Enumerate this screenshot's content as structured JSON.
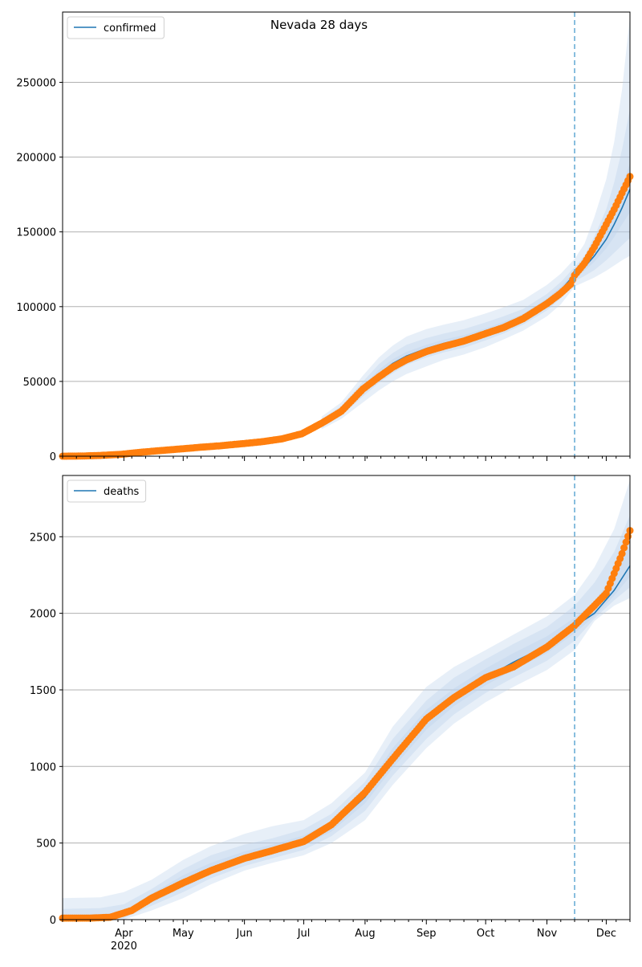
{
  "figure": {
    "title": "Nevada 28 days"
  },
  "colors": {
    "model": "#1f77b4",
    "observed": "#ff7f0e",
    "band": "#b9d2ea",
    "forecast_line": "#6baed6",
    "grid": "#b0b0b0"
  },
  "chart_data": [
    {
      "type": "line",
      "panel": "confirmed",
      "legend": "confirmed",
      "legend_position": "top-left",
      "grid_y": true,
      "x_start": "2020-03-01",
      "x_end": "2020-12-13",
      "forecast_start": "2020-11-15",
      "ylim": [
        0,
        297000
      ],
      "yticks": [
        0,
        50000,
        100000,
        150000,
        200000,
        250000
      ],
      "ytick_labels": [
        "0",
        "50000",
        "100000",
        "150000",
        "200000",
        "250000"
      ],
      "xticks": [
        {
          "date": "2020-04-01",
          "label": "Apr"
        },
        {
          "date": "2020-05-01",
          "label": "May"
        },
        {
          "date": "2020-06-01",
          "label": "Jun"
        },
        {
          "date": "2020-07-01",
          "label": "Jul"
        },
        {
          "date": "2020-08-01",
          "label": "Aug"
        },
        {
          "date": "2020-09-01",
          "label": "Sep"
        },
        {
          "date": "2020-10-01",
          "label": "Oct"
        },
        {
          "date": "2020-11-01",
          "label": "Nov"
        },
        {
          "date": "2020-12-01",
          "label": "Dec"
        }
      ],
      "year_label": "",
      "model": {
        "dates": [
          "2020-07-10",
          "2020-07-20",
          "2020-07-31",
          "2020-08-08",
          "2020-08-15",
          "2020-08-22",
          "2020-09-01",
          "2020-09-10",
          "2020-09-20",
          "2020-10-01",
          "2020-10-10",
          "2020-10-20",
          "2020-11-01",
          "2020-11-08",
          "2020-11-15",
          "2020-11-20",
          "2020-11-25",
          "2020-12-01",
          "2020-12-05",
          "2020-12-09",
          "2020-12-13"
        ],
        "median": [
          22000,
          30000,
          45000,
          55000,
          62000,
          67000,
          72000,
          75500,
          78500,
          83000,
          87500,
          93000,
          103000,
          111000,
          121500,
          126500,
          134000,
          145000,
          155000,
          166000,
          178500
        ],
        "bands": [
          {
            "lower": [
              18000,
              25000,
              36000,
              44000,
              50000,
              55000,
              60000,
              64500,
              68000,
              73000,
              78000,
              84000,
              93500,
              101500,
              113500,
              116500,
              119500,
              124000,
              127500,
              131000,
              134000
            ],
            "upper": [
              26500,
              36000,
              54000,
              66000,
              74000,
              80000,
              85000,
              88000,
              91000,
              95500,
              99500,
              104500,
              114500,
              122000,
              132000,
              142000,
              160000,
              185000,
              210000,
              245000,
              294000
            ]
          },
          {
            "lower": [
              19500,
              27000,
              40000,
              49000,
              55500,
              61000,
              66000,
              69500,
              72500,
              77500,
              82000,
              88000,
              97500,
              105500,
              117000,
              120500,
              124500,
              131000,
              136000,
              141000,
              146000
            ],
            "upper": [
              24800,
              33500,
              50000,
              61500,
              69000,
              74500,
              79000,
              82000,
              85000,
              89500,
              93500,
              98500,
              108500,
              116500,
              126500,
              134000,
              147000,
              165000,
              183000,
              205000,
              232000
            ]
          },
          {
            "lower": [
              20800,
              28800,
              43000,
              52500,
              59500,
              64500,
              69500,
              73000,
              76000,
              81000,
              85500,
              91000,
              101000,
              109000,
              119500,
              124000,
              130000,
              139000,
              146500,
              155000,
              163000
            ],
            "upper": [
              23300,
              31400,
              47000,
              57800,
              64800,
              69800,
              74500,
              78000,
              81000,
              85500,
              89800,
              95200,
              105500,
              113500,
              123500,
              129500,
              139500,
              152500,
              165500,
              180000,
              196000
            ]
          }
        ]
      },
      "observed": {
        "dates": [
          "2020-03-01",
          "2020-03-10",
          "2020-03-20",
          "2020-03-31",
          "2020-04-10",
          "2020-04-20",
          "2020-05-01",
          "2020-05-10",
          "2020-05-20",
          "2020-06-01",
          "2020-06-10",
          "2020-06-20",
          "2020-06-30",
          "2020-07-10",
          "2020-07-20",
          "2020-07-31",
          "2020-08-08",
          "2020-08-15",
          "2020-08-22",
          "2020-09-01",
          "2020-09-10",
          "2020-09-20",
          "2020-10-01",
          "2020-10-10",
          "2020-10-20",
          "2020-11-01",
          "2020-11-08",
          "2020-11-13",
          "2020-11-15",
          "2020-11-20",
          "2020-11-25",
          "2020-12-01",
          "2020-12-05",
          "2020-12-09",
          "2020-12-13"
        ],
        "values": [
          0,
          100,
          500,
          1300,
          2700,
          3800,
          5000,
          6000,
          7000,
          8500,
          9700,
          11600,
          15000,
          22000,
          30000,
          45000,
          53000,
          59500,
          64500,
          70000,
          73500,
          77000,
          82000,
          86000,
          92000,
          102000,
          109000,
          115000,
          121000,
          129000,
          140000,
          155000,
          165000,
          176000,
          187000
        ]
      }
    },
    {
      "type": "line",
      "panel": "deaths",
      "legend": "deaths",
      "legend_position": "top-left",
      "grid_y": true,
      "x_start": "2020-03-01",
      "x_end": "2020-12-13",
      "forecast_start": "2020-11-15",
      "ylim": [
        0,
        2900
      ],
      "yticks": [
        0,
        500,
        1000,
        1500,
        2000,
        2500
      ],
      "ytick_labels": [
        "0",
        "500",
        "1000",
        "1500",
        "2000",
        "2500"
      ],
      "xticks": [
        {
          "date": "2020-04-01",
          "label": "Apr"
        },
        {
          "date": "2020-05-01",
          "label": "May"
        },
        {
          "date": "2020-06-01",
          "label": "Jun"
        },
        {
          "date": "2020-07-01",
          "label": "Jul"
        },
        {
          "date": "2020-08-01",
          "label": "Aug"
        },
        {
          "date": "2020-09-01",
          "label": "Sep"
        },
        {
          "date": "2020-10-01",
          "label": "Oct"
        },
        {
          "date": "2020-11-01",
          "label": "Nov"
        },
        {
          "date": "2020-12-01",
          "label": "Dec"
        }
      ],
      "year_label": "2020",
      "model": {
        "dates": [
          "2020-03-01",
          "2020-03-20",
          "2020-04-01",
          "2020-04-15",
          "2020-05-01",
          "2020-05-15",
          "2020-06-01",
          "2020-06-15",
          "2020-07-01",
          "2020-07-15",
          "2020-08-01",
          "2020-08-15",
          "2020-09-01",
          "2020-09-15",
          "2020-10-01",
          "2020-10-15",
          "2020-11-01",
          "2020-11-15",
          "2020-11-25",
          "2020-12-05",
          "2020-12-13"
        ],
        "median": [
          5,
          10,
          25,
          130,
          250,
          330,
          400,
          450,
          510,
          600,
          800,
          1050,
          1300,
          1450,
          1580,
          1680,
          1790,
          1915,
          2000,
          2150,
          2310
        ],
        "bands": [
          {
            "lower": [
              0,
              0,
              0,
              60,
              140,
              230,
              320,
              370,
              420,
              500,
              650,
              880,
              1120,
              1280,
              1420,
              1520,
              1630,
              1760,
              1950,
              2050,
              2100
            ],
            "upper": [
              140,
              145,
              180,
              260,
              390,
              480,
              560,
              610,
              650,
              760,
              960,
              1260,
              1520,
              1650,
              1760,
              1860,
              1980,
              2120,
              2300,
              2550,
              2870
            ]
          },
          {
            "lower": [
              0,
              2,
              10,
              90,
              180,
              270,
              350,
              400,
              455,
              545,
              710,
              940,
              1180,
              1340,
              1480,
              1580,
              1690,
              1820,
              1965,
              2085,
              2170
            ],
            "upper": [
              70,
              75,
              100,
              200,
              330,
              420,
              490,
              530,
              590,
              690,
              900,
              1180,
              1430,
              1580,
              1700,
              1800,
              1910,
              2050,
              2200,
              2400,
              2640
            ]
          },
          {
            "lower": [
              0,
              5,
              18,
              110,
              210,
              300,
              375,
              425,
              485,
              575,
              760,
              990,
              1240,
              1395,
              1530,
              1630,
              1740,
              1870,
              1980,
              2115,
              2240
            ],
            "upper": [
              30,
              35,
              50,
              170,
              290,
              370,
              445,
              490,
              550,
              640,
              850,
              1120,
              1370,
              1510,
              1640,
              1740,
              1850,
              1970,
              2080,
              2250,
              2450
            ]
          }
        ]
      },
      "observed": {
        "dates": [
          "2020-03-01",
          "2020-03-15",
          "2020-03-25",
          "2020-04-05",
          "2020-04-15",
          "2020-05-01",
          "2020-05-15",
          "2020-06-01",
          "2020-06-15",
          "2020-07-01",
          "2020-07-15",
          "2020-08-01",
          "2020-08-15",
          "2020-09-01",
          "2020-09-15",
          "2020-10-01",
          "2020-10-15",
          "2020-11-01",
          "2020-11-15",
          "2020-11-25",
          "2020-12-01",
          "2020-12-05",
          "2020-12-09",
          "2020-12-13"
        ],
        "values": [
          10,
          10,
          15,
          60,
          140,
          240,
          320,
          400,
          450,
          510,
          620,
          830,
          1050,
          1310,
          1450,
          1580,
          1650,
          1780,
          1920,
          2050,
          2130,
          2260,
          2390,
          2540
        ]
      }
    }
  ]
}
